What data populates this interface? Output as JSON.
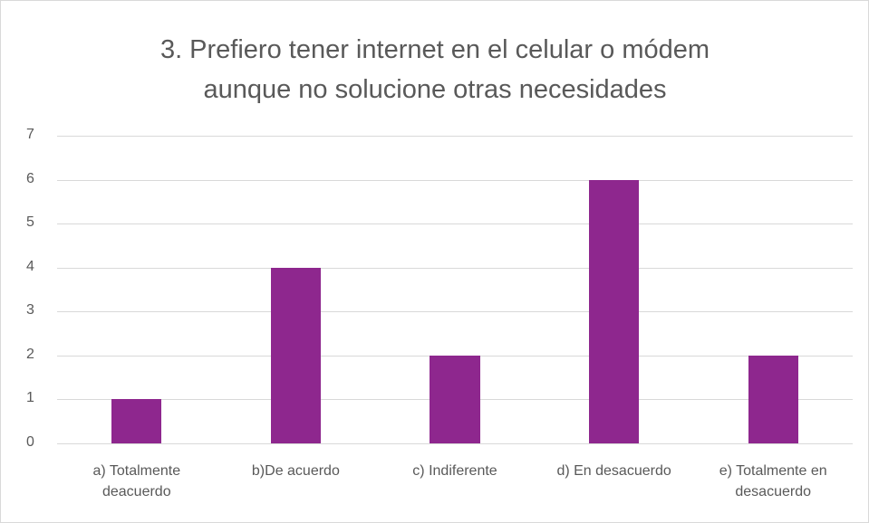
{
  "chart_data": {
    "type": "bar",
    "title": "3. Prefiero tener internet en el celular o módem aunque no solucione otras necesidades",
    "categories": [
      "a) Totalmente deacuerdo",
      "b)De acuerdo",
      "c) Indiferente",
      "d) En desacuerdo",
      "e) Totalmente en desacuerdo"
    ],
    "values": [
      1,
      4,
      2,
      6,
      2
    ],
    "color": "#8e278e",
    "ylim": [
      0,
      7
    ],
    "yticks": [
      0,
      1,
      2,
      3,
      4,
      5,
      6,
      7
    ],
    "grid": true
  }
}
